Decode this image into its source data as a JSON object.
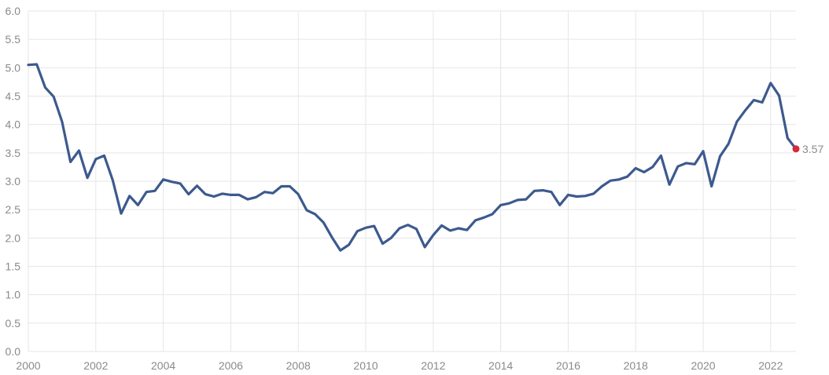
{
  "colors": {
    "line": "#3d5a8e",
    "grid": "#e6e6e6",
    "marker": "#d9283b",
    "text": "#8a8a8a"
  },
  "chart_data": {
    "type": "line",
    "title": "",
    "xlabel": "",
    "ylabel": "",
    "xlim": [
      2000,
      2022.75
    ],
    "ylim": [
      0,
      6
    ],
    "grid": true,
    "legend": "none",
    "xticks": [
      "2000",
      "2002",
      "2004",
      "2006",
      "2008",
      "2010",
      "2012",
      "2014",
      "2016",
      "2018",
      "2020",
      "2022"
    ],
    "yticks": [
      "0.0",
      "0.5",
      "1.0",
      "1.5",
      "2.0",
      "2.5",
      "3.0",
      "3.5",
      "4.0",
      "4.5",
      "5.0",
      "5.5",
      "6.0"
    ],
    "last_value_label": "3.57",
    "series": [
      {
        "x": [
          2000.0,
          2000.25,
          2000.5,
          2000.75,
          2001.0,
          2001.25,
          2001.5,
          2001.75,
          2002.0,
          2002.25,
          2002.5,
          2002.75,
          2003.0,
          2003.25,
          2003.5,
          2003.75,
          2004.0,
          2004.25,
          2004.5,
          2004.75,
          2005.0,
          2005.25,
          2005.5,
          2005.75,
          2006.0,
          2006.25,
          2006.5,
          2006.75,
          2007.0,
          2007.25,
          2007.5,
          2007.75,
          2008.0,
          2008.25,
          2008.5,
          2008.75,
          2009.0,
          2009.25,
          2009.5,
          2009.75,
          2010.0,
          2010.25,
          2010.5,
          2010.75,
          2011.0,
          2011.25,
          2011.5,
          2011.75,
          2012.0,
          2012.25,
          2012.5,
          2012.75,
          2013.0,
          2013.25,
          2013.5,
          2013.75,
          2014.0,
          2014.25,
          2014.5,
          2014.75,
          2015.0,
          2015.25,
          2015.5,
          2015.75,
          2016.0,
          2016.25,
          2016.5,
          2016.75,
          2017.0,
          2017.25,
          2017.5,
          2017.75,
          2018.0,
          2018.25,
          2018.5,
          2018.75,
          2019.0,
          2019.25,
          2019.5,
          2019.75,
          2020.0,
          2020.25,
          2020.5,
          2020.75,
          2021.0,
          2021.25,
          2021.5,
          2021.75,
          2022.0,
          2022.25,
          2022.5,
          2022.75
        ],
        "values": [
          5.05,
          5.06,
          4.65,
          4.49,
          4.05,
          3.34,
          3.54,
          3.06,
          3.39,
          3.45,
          3.02,
          2.43,
          2.74,
          2.58,
          2.81,
          2.83,
          3.03,
          2.99,
          2.96,
          2.77,
          2.92,
          2.77,
          2.73,
          2.78,
          2.76,
          2.76,
          2.68,
          2.72,
          2.81,
          2.79,
          2.91,
          2.91,
          2.77,
          2.49,
          2.42,
          2.27,
          2.01,
          1.78,
          1.88,
          2.12,
          2.18,
          2.21,
          1.9,
          2.0,
          2.17,
          2.23,
          2.16,
          1.84,
          2.05,
          2.22,
          2.13,
          2.17,
          2.14,
          2.31,
          2.36,
          2.42,
          2.58,
          2.61,
          2.67,
          2.68,
          2.83,
          2.84,
          2.81,
          2.58,
          2.76,
          2.73,
          2.74,
          2.78,
          2.91,
          3.01,
          3.03,
          3.08,
          3.23,
          3.16,
          3.25,
          3.45,
          2.94,
          3.26,
          3.32,
          3.3,
          3.53,
          2.91,
          3.44,
          3.66,
          4.05,
          4.25,
          4.43,
          4.39,
          4.73,
          4.51,
          3.76,
          3.57
        ]
      }
    ]
  }
}
